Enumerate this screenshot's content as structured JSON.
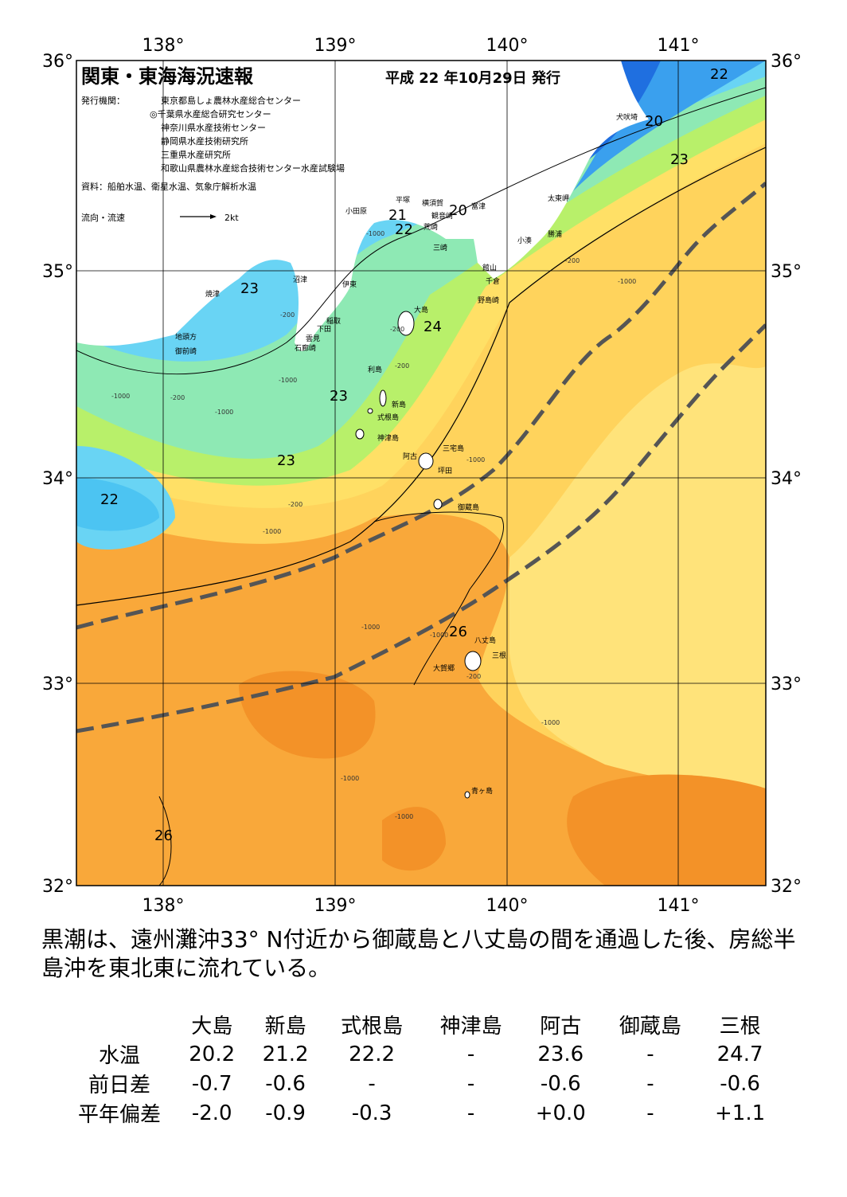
{
  "header": {
    "title": "関東・東海海況速報",
    "date": "平成 22 年10月29日 発行",
    "issuer_label": "発行機関：",
    "issuers": [
      "東京都島しょ農林水産総合センター",
      "◎千葉県水産総合研究センター",
      "神奈川県水産技術センター",
      "静岡県水産技術研究所",
      "三重県水産研究所",
      "和歌山県農林水産総合技術センター水産試験場"
    ],
    "source": "資料：船舶水温、衛星水温、気象庁解析水温",
    "current_legend": "流向・流速",
    "current_scale": "2kt"
  },
  "map": {
    "lon_labels": [
      "138°",
      "139°",
      "140°",
      "141°"
    ],
    "lat_labels": [
      "36°",
      "35°",
      "34°",
      "33°",
      "32°"
    ],
    "place_names": [
      "犬吠埼",
      "太東岬",
      "勝浦",
      "小湊",
      "館山",
      "千倉",
      "野島崎",
      "平塚",
      "横須賀",
      "観音崎",
      "富津",
      "荒崎",
      "三崎",
      "小田原",
      "沼津",
      "伊東",
      "焼津",
      "稲取",
      "下田",
      "雲見",
      "石廊崎",
      "地頭方",
      "御前崎",
      "大島",
      "利島",
      "新島",
      "式根島",
      "神津島",
      "三宅島",
      "阿古",
      "坪田",
      "御蔵島",
      "八丈島",
      "三根",
      "大賀郷",
      "青ヶ島"
    ],
    "isotherm_labels": [
      "20",
      "21",
      "22",
      "22",
      "22",
      "23",
      "23",
      "23",
      "23",
      "24",
      "26",
      "26"
    ],
    "depth_labels": [
      "-200",
      "-1000"
    ]
  },
  "summary": "黒潮は、遠州灘沖33° N付近から御蔵島と八丈島の間を通過した後、房総半島沖を東北東に流れている。",
  "table": {
    "columns": [
      "大島",
      "新島",
      "式根島",
      "神津島",
      "阿古",
      "御蔵島",
      "三根"
    ],
    "rows": [
      {
        "label": "水温",
        "values": [
          "20.2",
          "21.2",
          "22.2",
          "-",
          "23.6",
          "-",
          "24.7"
        ]
      },
      {
        "label": "前日差",
        "values": [
          "-0.7",
          "-0.6",
          "-",
          "-",
          "-0.6",
          "-",
          "-0.6"
        ]
      },
      {
        "label": "平年偏差",
        "values": [
          "-2.0",
          "-0.9",
          "-0.3",
          "-",
          "+0.0",
          "-",
          "+1.1"
        ]
      }
    ]
  },
  "colors": {
    "land": "#ffffff",
    "t20": "#1f6fe0",
    "t21": "#3aa0ee",
    "t22": "#69d4f4",
    "t23": "#8ee9b4",
    "t24": "#b8f06a",
    "t25": "#ffe066",
    "t26": "#ffc04c",
    "t27": "#f7a030",
    "kuroshio_axis": "#555555"
  }
}
